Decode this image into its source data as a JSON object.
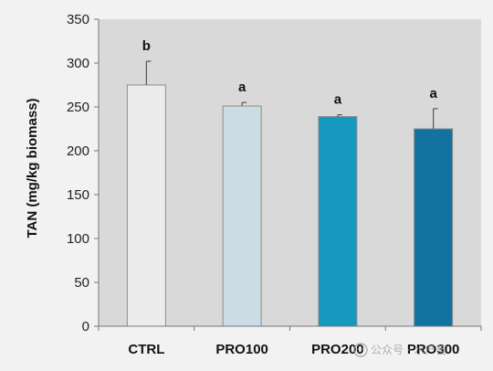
{
  "chart_data": {
    "type": "bar",
    "categories": [
      "CTRL",
      "PRO100",
      "PRO200",
      "PRO300"
    ],
    "values": [
      275,
      251,
      239,
      225
    ],
    "errors": [
      27,
      4,
      2,
      23
    ],
    "significance": [
      "b",
      "a",
      "a",
      "a"
    ],
    "bar_colors": [
      "#ececec",
      "#cddbe5",
      "#1599c1",
      "#1272a0"
    ],
    "xlabel": "",
    "ylabel": "TAN (mg/kg biomass)",
    "ylim": [
      0,
      350
    ],
    "yticks": [
      0,
      50,
      100,
      150,
      200,
      250,
      300,
      350
    ],
    "grid": false,
    "plot_background": "#d9d9d9"
  },
  "watermark": {
    "text": "公众号 · 水产苗"
  }
}
